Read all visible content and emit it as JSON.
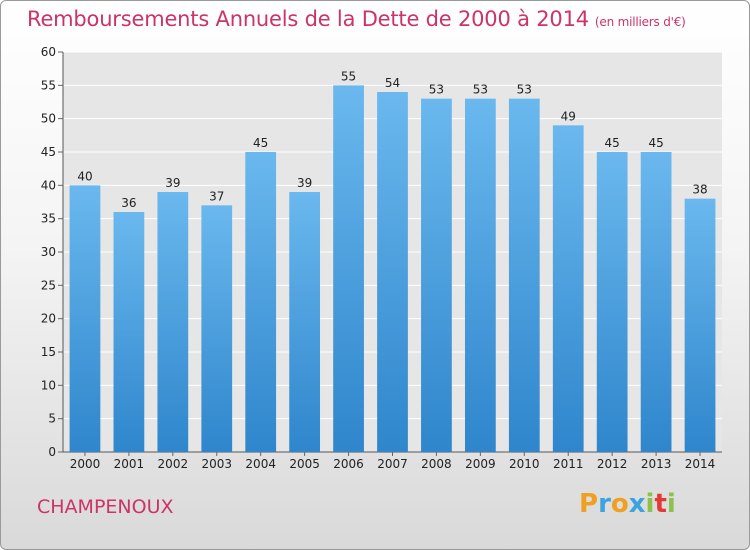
{
  "header": {
    "title": "Remboursements Annuels de la Dette de 2000 à 2014",
    "unit": "(en milliers d'€)"
  },
  "footer": {
    "town": "CHAMPENOUX",
    "logo_letters": [
      "P",
      "r",
      "o",
      "x",
      "i",
      "t",
      "i"
    ],
    "logo_colors": [
      "#f0a020",
      "#3aa3e0",
      "#f0a020",
      "#3aa3e0",
      "#8bc34a",
      "#e53935",
      "#8bc34a"
    ]
  },
  "colors": {
    "bar_light": "#6ab8ee",
    "bar_dark": "#2f86cc",
    "title": "#cc3366"
  },
  "chart_data": {
    "type": "bar",
    "title": "Remboursements Annuels de la Dette de 2000 à 2014",
    "categories": [
      "2000",
      "2001",
      "2002",
      "2003",
      "2004",
      "2005",
      "2006",
      "2007",
      "2008",
      "2009",
      "2010",
      "2011",
      "2012",
      "2013",
      "2014"
    ],
    "values": [
      40,
      36,
      39,
      37,
      45,
      39,
      55,
      54,
      53,
      53,
      53,
      49,
      45,
      45,
      38
    ],
    "ylim": [
      0,
      60
    ],
    "yticks": [
      0,
      5,
      10,
      15,
      20,
      25,
      30,
      35,
      40,
      45,
      50,
      55,
      60
    ],
    "grid": true,
    "legend": "none"
  }
}
